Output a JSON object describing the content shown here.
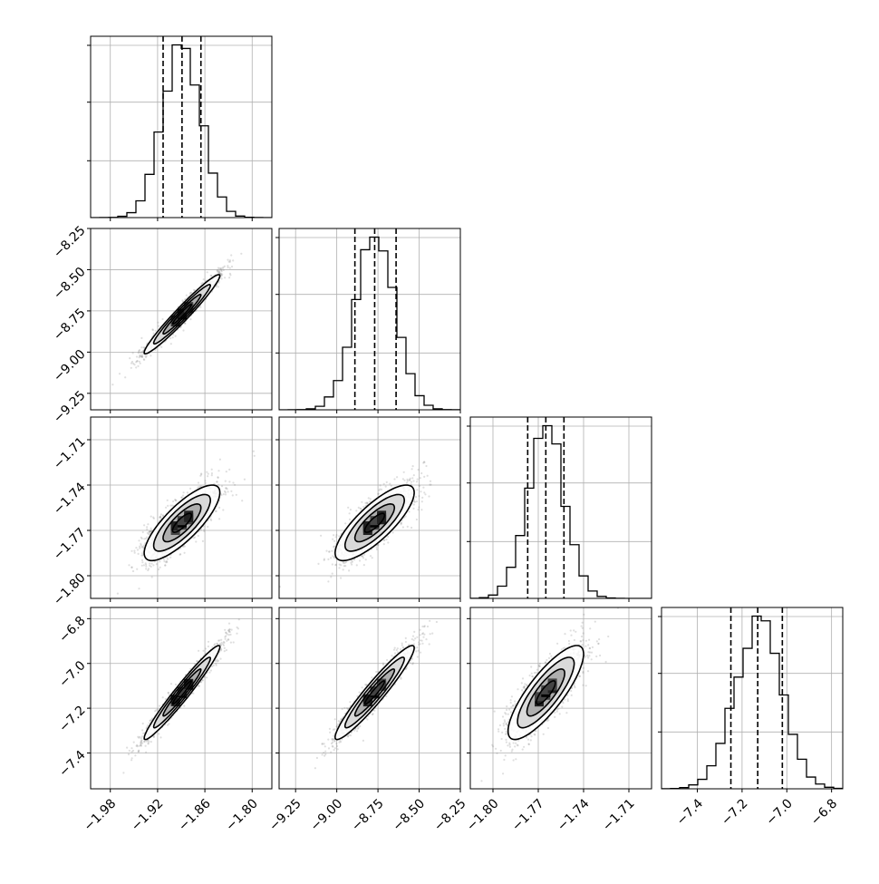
{
  "chart_data": {
    "type": "corner",
    "colors": {
      "foreground": "#000000",
      "grid": "#b0b0b0",
      "scatter": "#808080",
      "background": "#ffffff"
    },
    "grid": true,
    "params": [
      {
        "id": "p0",
        "range": [
          -2.005,
          -1.775
        ],
        "ticks": [
          -1.98,
          -1.92,
          -1.86,
          -1.8
        ],
        "tick_labels": [
          "−1.98",
          "−1.92",
          "−1.86",
          "−1.80"
        ],
        "mean": -1.889,
        "std": 0.024,
        "quantiles": [
          -1.913,
          -1.889,
          -1.865
        ]
      },
      {
        "id": "p1",
        "range": [
          -9.35,
          -8.25
        ],
        "ticks": [
          -9.25,
          -9.0,
          -8.75,
          -8.5,
          -8.25
        ],
        "tick_labels": [
          "−9.25",
          "−9.00",
          "−8.75",
          "−8.50",
          "−8.25"
        ],
        "mean": -8.77,
        "std": 0.12,
        "quantiles": [
          -8.89,
          -8.77,
          -8.64
        ]
      },
      {
        "id": "p2",
        "range": [
          -1.815,
          -1.695
        ],
        "ticks": [
          -1.8,
          -1.77,
          -1.74,
          -1.71
        ],
        "tick_labels": [
          "−1.80",
          "−1.77",
          "−1.74",
          "−1.71"
        ],
        "mean": -1.765,
        "std": 0.0125,
        "quantiles": [
          -1.777,
          -1.765,
          -1.753
        ]
      },
      {
        "id": "p3",
        "range": [
          -7.56,
          -6.75
        ],
        "ticks": [
          -7.4,
          -7.2,
          -7.0,
          -6.8
        ],
        "tick_labels": [
          "−7.4",
          "−7.2",
          "−7.0",
          "−6.8"
        ],
        "mean": -7.13,
        "std": 0.105,
        "quantiles": [
          -7.25,
          -7.13,
          -7.02
        ]
      }
    ],
    "correlations": [
      [
        1.0,
        0.97,
        0.8,
        0.97
      ],
      [
        0.97,
        1.0,
        0.8,
        0.95
      ],
      [
        0.8,
        0.8,
        1.0,
        0.82
      ],
      [
        0.97,
        0.95,
        0.82,
        1.0
      ]
    ],
    "histogram": {
      "bins": 20,
      "style": "step"
    },
    "density_levels_sigma": [
      0.5,
      1.0,
      1.5,
      2.0
    ]
  }
}
